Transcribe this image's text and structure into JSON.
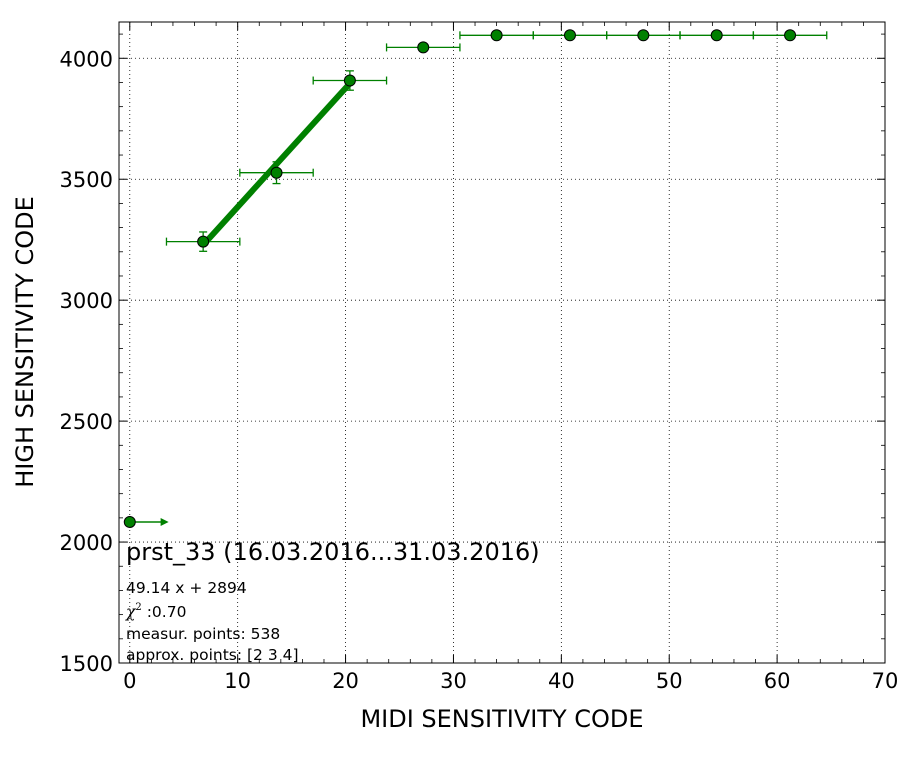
{
  "chart_data": {
    "type": "scatter",
    "title": "prst_33 (16.03.2016...31.03.2016)",
    "xlabel": "MIDI SENSITIVITY CODE",
    "ylabel": "HIGH SENSITIVITY CODE",
    "xlim": [
      -1,
      70
    ],
    "ylim": [
      1500,
      4150
    ],
    "x_ticks": [
      0,
      10,
      20,
      30,
      40,
      50,
      60,
      70
    ],
    "y_ticks": [
      1500,
      2000,
      2500,
      3000,
      3500,
      4000
    ],
    "grid": true,
    "marker_color": "#008000",
    "points": [
      {
        "x": 0,
        "y": 2083,
        "xerr": 0,
        "yerr": 0,
        "lower_limit_arrow": true,
        "arrow_to": 3.6
      },
      {
        "x": 6.8,
        "y": 3242,
        "xerr": 3.4,
        "yerr": 40
      },
      {
        "x": 13.6,
        "y": 3527,
        "xerr": 3.4,
        "yerr": 45
      },
      {
        "x": 20.4,
        "y": 3908,
        "xerr": 3.4,
        "yerr": 40
      },
      {
        "x": 27.2,
        "y": 4045,
        "xerr": 3.4,
        "yerr": 0
      },
      {
        "x": 34.0,
        "y": 4095,
        "xerr": 3.4,
        "yerr": 0
      },
      {
        "x": 40.8,
        "y": 4095,
        "xerr": 3.4,
        "yerr": 0
      },
      {
        "x": 47.6,
        "y": 4095,
        "xerr": 3.4,
        "yerr": 0
      },
      {
        "x": 54.4,
        "y": 4095,
        "xerr": 3.4,
        "yerr": 0
      },
      {
        "x": 61.2,
        "y": 4095,
        "xerr": 3.4,
        "yerr": 0
      }
    ],
    "fit": {
      "slope": 49.14,
      "intercept": 2894,
      "x_range": [
        6.8,
        20.4
      ]
    },
    "annotations": {
      "fit_equation": "49.14 x + 2894",
      "chi_symbol": "χ",
      "chi_superscript": "2",
      "chi_value": " :0.70",
      "measur_points": "measur. points: 538",
      "approx_points": "approx. points: [2 3 4]"
    }
  }
}
